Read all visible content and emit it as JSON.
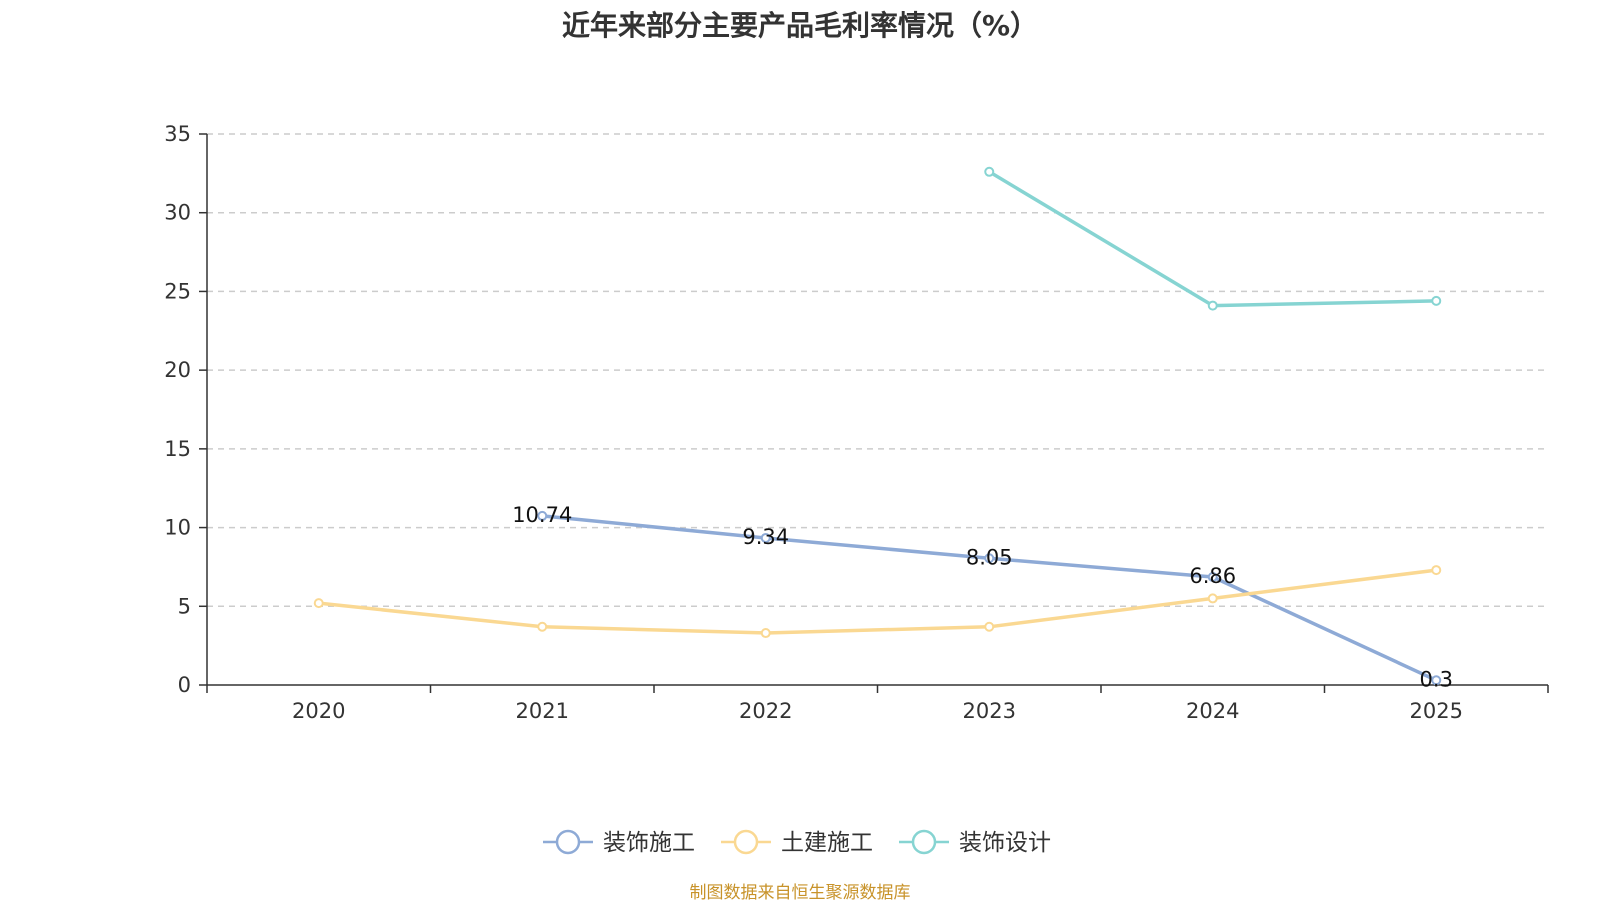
{
  "chart_data": {
    "type": "line",
    "title": "近年来部分主要产品毛利率情况（%）",
    "categories": [
      "2020",
      "2021",
      "2022",
      "2023",
      "2024",
      "2025"
    ],
    "ylim": [
      0,
      35
    ],
    "yticks": [
      0,
      5,
      10,
      15,
      20,
      25,
      30,
      35
    ],
    "grid": "dashed horizontal",
    "legend_position": "bottom-center",
    "series": [
      {
        "name": "装饰施工",
        "color": "#8eaad6",
        "values": [
          null,
          10.74,
          9.34,
          8.05,
          6.86,
          0.3
        ],
        "labels": [
          null,
          "10.74",
          "9.34",
          "8.05",
          "6.86",
          "0.3"
        ]
      },
      {
        "name": "土建施工",
        "color": "#fad892",
        "values": [
          5.2,
          3.7,
          3.3,
          3.7,
          5.5,
          7.3
        ],
        "labels": [
          null,
          null,
          null,
          null,
          null,
          null
        ]
      },
      {
        "name": "装饰设计",
        "color": "#86d4d2",
        "values": [
          null,
          null,
          null,
          32.6,
          24.1,
          24.4
        ],
        "labels": [
          null,
          null,
          null,
          null,
          null,
          null
        ]
      }
    ]
  },
  "source": "制图数据来自恒生聚源数据库"
}
